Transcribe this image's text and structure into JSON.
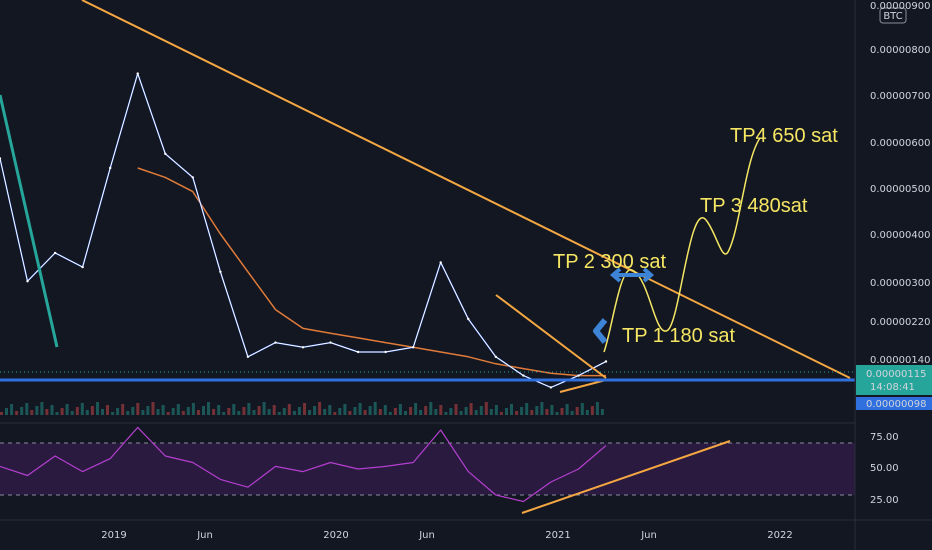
{
  "currency_badge": "BTC",
  "colors": {
    "background": "#131722",
    "price": "#ffffff",
    "ma_fast": "#2962ff",
    "ma_slow": "#e07b39",
    "trendline": "#f5a742",
    "support": "#2f6fde",
    "rsi": "#b43fcf",
    "rsi_band": "#2a1a40",
    "annotation": "#f5e663",
    "teal": "#26a69a"
  },
  "price_axis": {
    "ticks": [
      "0.00000900",
      "0.00000800",
      "0.00000700",
      "0.00000600",
      "0.00000500",
      "0.00000400",
      "0.00000300",
      "0.00000220",
      "0.00000140"
    ],
    "current_price": "0.00000115",
    "countdown": "14:08:41",
    "support_price": "0.00000098"
  },
  "rsi_axis": {
    "ticks": [
      "75.00",
      "50.00",
      "25.00"
    ]
  },
  "time_axis": {
    "ticks": [
      "2019",
      "Jun",
      "2020",
      "Jun",
      "2021",
      "Jun",
      "2022"
    ]
  },
  "annotations": {
    "tp1": "TP 1 180 sat",
    "tp2": "TP 2 300 sat",
    "tp3": "TP 3 480sat",
    "tp4": "TP4 650 sat"
  },
  "chart_data": {
    "type": "line",
    "xlabel": "",
    "ylabel": "",
    "x": [
      "2018-03",
      "2018-05",
      "2018-07",
      "2018-09",
      "2018-11",
      "2019-01",
      "2019-02",
      "2019-03",
      "2019-05",
      "2019-07",
      "2019-09",
      "2019-11",
      "2020-01",
      "2020-03",
      "2020-05",
      "2020-07",
      "2020-08",
      "2020-09",
      "2020-11",
      "2020-12",
      "2021-01",
      "2021-02",
      "2021-04"
    ],
    "series": [
      {
        "values": [
          5.8,
          3.2,
          3.8,
          3.5,
          5.6,
          7.6,
          5.9,
          5.4,
          3.4,
          1.6,
          1.9,
          1.8,
          1.9,
          1.7,
          1.7,
          1.8,
          3.6,
          2.4,
          1.6,
          1.2,
          0.95,
          1.2,
          1.5
        ]
      },
      {
        "values": [
          null,
          null,
          null,
          null,
          null,
          5.6,
          5.4,
          5.1,
          4.2,
          3.4,
          2.6,
          2.2,
          2.1,
          2.0,
          1.9,
          1.8,
          1.7,
          1.6,
          1.45,
          1.35,
          1.25,
          1.2,
          1.2
        ]
      }
    ],
    "rsi_values": [
      52,
      45,
      60,
      48,
      58,
      82,
      60,
      55,
      42,
      36,
      52,
      48,
      55,
      50,
      52,
      55,
      80,
      48,
      30,
      25,
      40,
      50,
      68
    ],
    "rsi_levels": [
      70,
      30
    ],
    "rsi_ylim": [
      15,
      85
    ],
    "ylim": [
      0.5,
      9.0
    ],
    "y_unit_multiplier": "1e-6",
    "support_level": 0.98
  }
}
